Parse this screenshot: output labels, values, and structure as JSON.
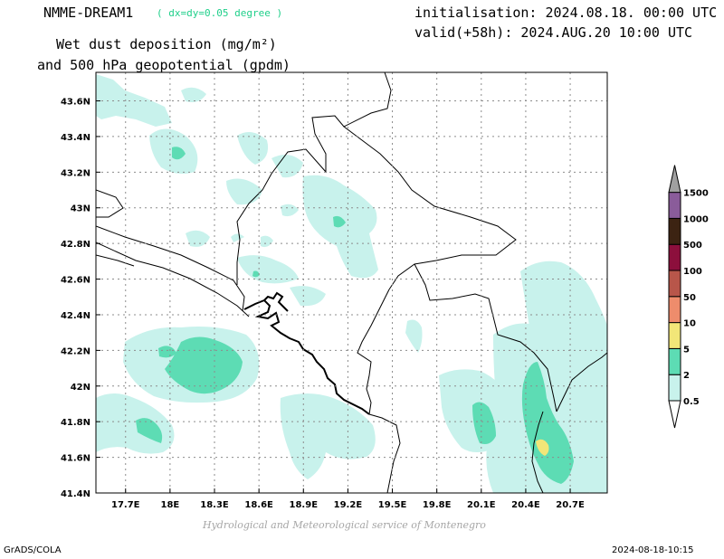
{
  "header": {
    "model_name": "NMME-DREAM1",
    "resolution": "( dx=dy=0.05 degree )",
    "initialisation": "initialisation: 2024.08.18. 00:00 UTC",
    "valid": "valid(+58h): 2024.AUG.20 10:00 UTC",
    "title_line1": "Wet dust deposition (mg/m²)",
    "title_line2": "and 500 hPa geopotential (gpdm)"
  },
  "map": {
    "lon_ticks": [
      "17.7E",
      "18E",
      "18.3E",
      "18.6E",
      "18.9E",
      "19.2E",
      "19.5E",
      "19.8E",
      "20.1E",
      "20.4E",
      "20.7E"
    ],
    "lat_ticks": [
      "43.6N",
      "43.4N",
      "43.2N",
      "43N",
      "42.8N",
      "42.6N",
      "42.4N",
      "42.2N",
      "42N",
      "41.8N",
      "41.6N",
      "41.4N"
    ],
    "lon_range": [
      17.5,
      20.95
    ],
    "lat_range": [
      41.4,
      43.76
    ],
    "grid": true
  },
  "legend": {
    "levels": [
      "0.5",
      "2",
      "5",
      "10",
      "50",
      "100",
      "500",
      "1000",
      "1500"
    ],
    "colors": [
      "#c8f2ec",
      "#5ddcb4",
      "#f2e678",
      "#ee8c6c",
      "#b8564a",
      "#8c0f3c",
      "#3c2312",
      "#8a5c9a",
      "#a0a0a0"
    ]
  },
  "footer": {
    "credit": "Hydrological and Meteorological service of Montenegro",
    "left": "GrADS/COLA",
    "right": "2024-08-18-10:15"
  }
}
